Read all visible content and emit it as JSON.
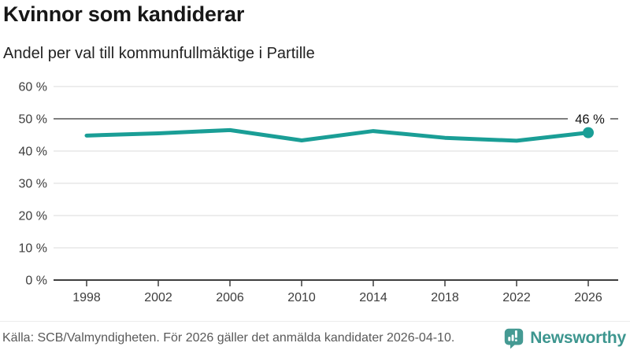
{
  "chart_data": {
    "type": "line",
    "title": "Kvinnor som kandiderar",
    "subtitle": "Andel per val till kommunfullmäktige i Partille",
    "source": "Källa: SCB/Valmyndigheten. För 2026 gäller det anmälda kandidater 2026-04-10.",
    "categories": [
      "1998",
      "2002",
      "2006",
      "2010",
      "2014",
      "2018",
      "2022",
      "2026"
    ],
    "values": [
      44.8,
      45.5,
      46.5,
      43.3,
      46.2,
      44.1,
      43.2,
      45.7
    ],
    "end_label": "46 %",
    "yticks": [
      0,
      10,
      20,
      30,
      40,
      50,
      60
    ],
    "ytick_labels": [
      "0 %",
      "10 %",
      "20 %",
      "30 %",
      "40 %",
      "50 %",
      "60 %"
    ],
    "ylim": [
      0,
      60
    ],
    "xlabel": "",
    "ylabel": "",
    "reference_line": 50,
    "grid": true,
    "legend": "none",
    "line_color": "#1a9e96"
  },
  "footer": {
    "brand": "Newsworthy"
  },
  "colors": {
    "accent_teal": "#1a9e96",
    "brand_teal": "#3d968f",
    "logo_teal": "#459a93",
    "reference_gray": "#7f7f7f",
    "grid_gray": "#e7e7e7",
    "axis_dark": "#3d3d3d"
  }
}
